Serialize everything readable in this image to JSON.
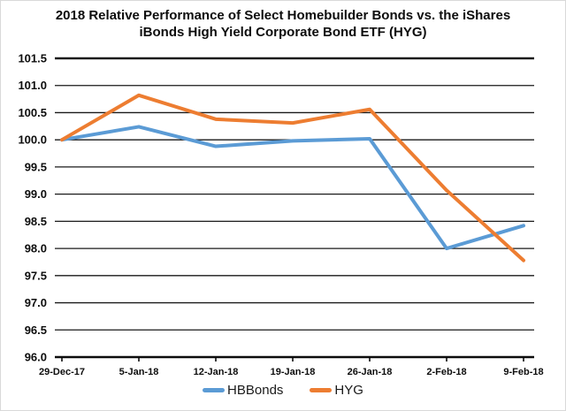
{
  "title_lines": [
    "2018 Relative Performance of Select Homebuilder Bonds vs. the iShares",
    "iBonds High Yield Corporate Bond ETF (HYG)"
  ],
  "chart_data": {
    "type": "line",
    "title": "2018 Relative Performance of Select Homebuilder Bonds vs. the iShares iBonds High Yield Corporate Bond ETF (HYG)",
    "categories": [
      "29-Dec-17",
      "5-Jan-18",
      "12-Jan-18",
      "19-Jan-18",
      "26-Jan-18",
      "2-Feb-18",
      "9-Feb-18"
    ],
    "series": [
      {
        "name": "HBBonds",
        "color": "#5B9BD5",
        "values": [
          100.0,
          100.24,
          99.88,
          99.98,
          100.02,
          98.0,
          98.42
        ]
      },
      {
        "name": "HYG",
        "color": "#ED7D31",
        "values": [
          100.0,
          100.82,
          100.38,
          100.31,
          100.56,
          99.07,
          97.78
        ]
      }
    ],
    "ylim": [
      96.0,
      101.5
    ],
    "y_tick_step": 0.5,
    "y_tick_labels": [
      "101.5",
      "101.0",
      "100.5",
      "100.0",
      "99.5",
      "99.0",
      "98.5",
      "98.0",
      "97.5",
      "97.0",
      "96.5",
      "96.0"
    ],
    "grid": "horizontal",
    "gridline_color": "#1a1a1a",
    "axis_color": "#0d0d0d",
    "legend_position": "bottom",
    "xlabel": "",
    "ylabel": ""
  }
}
